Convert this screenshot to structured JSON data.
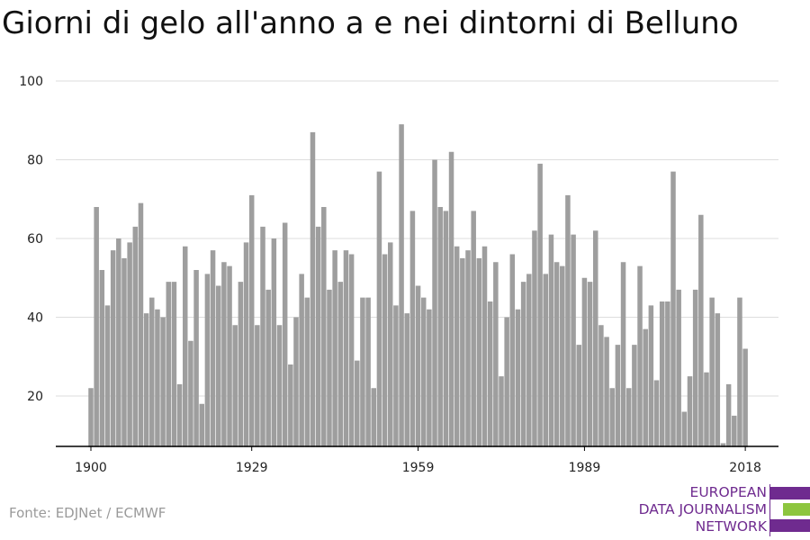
{
  "title": "Giorni di gelo all'anno a e nei dintorni di Belluno",
  "source": "Fonte: EDJNet / ECMWF",
  "logo": {
    "line1": "EUROPEAN",
    "line2": "DATA JOURNALISM",
    "line3": "NETWORK",
    "color_purple": "#6f2b8f",
    "color_green": "#8dc63f"
  },
  "colors": {
    "bar": "#9e9e9e",
    "grid": "#dddddd",
    "axis": "#000000"
  },
  "chart_data": {
    "type": "bar",
    "title": "Giorni di gelo all'anno a e nei dintorni di Belluno",
    "xlabel": "",
    "ylabel": "",
    "ylim": [
      7,
      100
    ],
    "yticks": [
      20,
      40,
      60,
      80,
      100
    ],
    "xticks": [
      1900,
      1929,
      1959,
      1989,
      2018
    ],
    "grid": true,
    "legend": "none",
    "x_start": 1900,
    "x_end": 2018,
    "values": [
      22,
      68,
      52,
      43,
      57,
      60,
      55,
      59,
      63,
      69,
      41,
      45,
      42,
      40,
      49,
      49,
      23,
      58,
      34,
      52,
      18,
      51,
      57,
      48,
      54,
      53,
      38,
      49,
      59,
      71,
      38,
      63,
      47,
      60,
      38,
      64,
      28,
      40,
      51,
      45,
      87,
      63,
      68,
      47,
      57,
      49,
      57,
      56,
      29,
      45,
      45,
      22,
      77,
      56,
      59,
      43,
      89,
      41,
      67,
      48,
      45,
      42,
      80,
      68,
      67,
      82,
      58,
      55,
      57,
      67,
      55,
      58,
      44,
      54,
      25,
      40,
      56,
      42,
      49,
      51,
      62,
      79,
      51,
      61,
      54,
      53,
      71,
      61,
      33,
      50,
      49,
      62,
      38,
      35,
      22,
      33,
      54,
      22,
      33,
      53,
      37,
      43,
      24,
      44,
      44,
      77,
      47,
      16,
      25,
      47,
      66,
      26,
      45,
      41,
      8,
      23,
      15,
      45,
      32
    ]
  }
}
